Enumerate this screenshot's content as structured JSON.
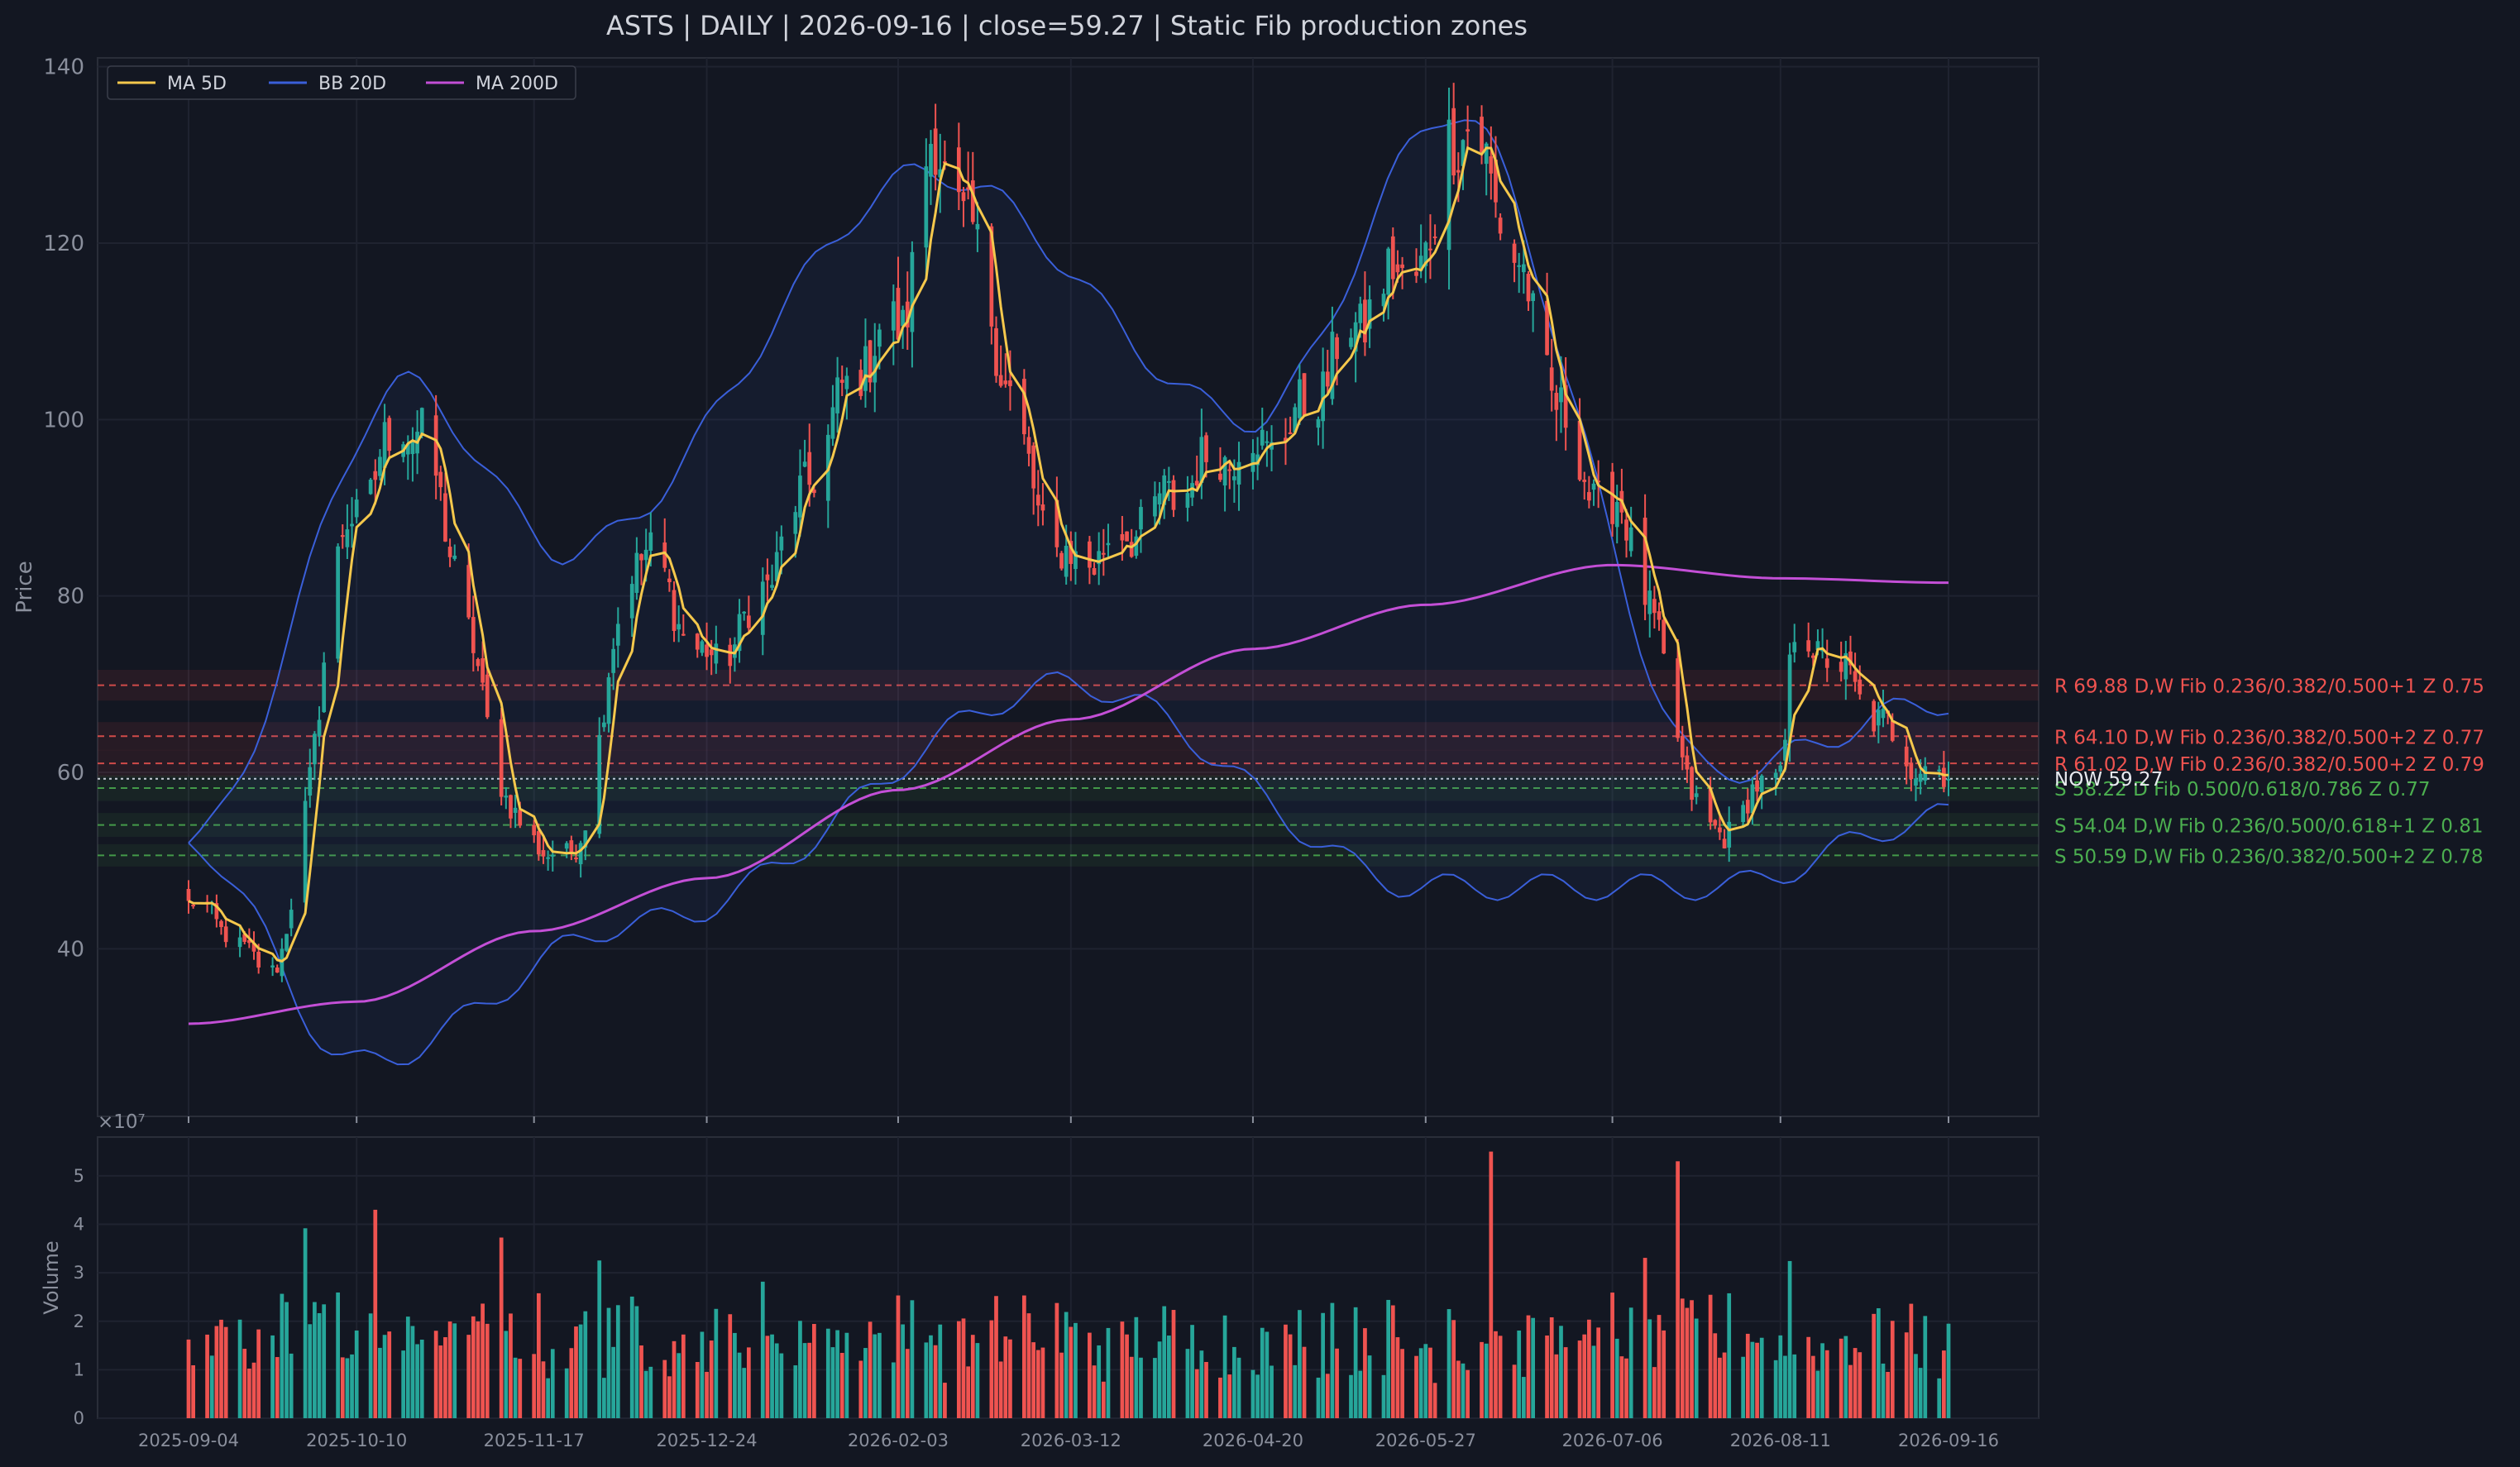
{
  "chart_data": {
    "type": "candlestick",
    "title": "ASTS  |  DAILY  |  2026-09-16  |  close=59.27  |  Static Fib production zones",
    "ticker": "ASTS",
    "timeframe": "DAILY",
    "as_of": "2026-09-16",
    "close": 59.27,
    "price_axis": {
      "label": "Price",
      "ylim": [
        21,
        141
      ],
      "ticks": [
        40,
        60,
        80,
        100,
        120,
        140
      ]
    },
    "volume_axis": {
      "label": "Volume",
      "multiplier_label": "×10⁷",
      "ylim": [
        0,
        5.8
      ],
      "ticks": [
        0,
        1,
        2,
        3,
        4,
        5
      ]
    },
    "x_axis": {
      "tick_labels": [
        "2025-09-04",
        "2025-10-10",
        "2025-11-17",
        "2025-12-24",
        "2026-02-03",
        "2026-03-12",
        "2026-04-20",
        "2026-05-27",
        "2026-07-06",
        "2026-08-11",
        "2026-09-16"
      ]
    },
    "legend": {
      "placement": "top-left",
      "entries": [
        {
          "name": "MA 5D",
          "color": "#f5c84c"
        },
        {
          "name": "BB 20D",
          "color": "#3a5fd9"
        },
        {
          "name": "MA 200D",
          "color": "#c34fd6"
        }
      ]
    },
    "colors": {
      "up": "#26a69a",
      "down": "#ef5350",
      "resistance": "#ef5350",
      "support": "#4caf50",
      "background": "#131722"
    },
    "grid": true,
    "anchors": {
      "dates": [
        "2025-09-04",
        "2025-10-10",
        "2025-11-17",
        "2025-12-24",
        "2026-02-03",
        "2026-03-12",
        "2026-04-20",
        "2026-05-27",
        "2026-07-06",
        "2026-08-11",
        "2026-09-16"
      ],
      "close": [
        45,
        90,
        52,
        73,
        110,
        84,
        97,
        118,
        90,
        60,
        59.27
      ]
    },
    "extrema": [
      {
        "date": "2025-09-22",
        "price": 38
      },
      {
        "date": "2025-10-20",
        "price": 100
      },
      {
        "date": "2025-11-24",
        "price": 50
      },
      {
        "date": "2025-12-10",
        "price": 85
      },
      {
        "date": "2026-02-10",
        "price": 130
      },
      {
        "date": "2026-06-02",
        "price": 133
      },
      {
        "date": "2026-07-28",
        "price": 53
      },
      {
        "date": "2026-08-14",
        "price": 75
      }
    ],
    "series": [
      {
        "name": "MA 5D",
        "approx_points": [
          {
            "date": "2025-09-04",
            "value": 47
          },
          {
            "date": "2025-09-22",
            "value": 38.5
          },
          {
            "date": "2025-10-10",
            "value": 75
          },
          {
            "date": "2025-10-20",
            "value": 90
          },
          {
            "date": "2025-11-05",
            "value": 72
          },
          {
            "date": "2025-11-24",
            "value": 53
          },
          {
            "date": "2025-12-10",
            "value": 77
          },
          {
            "date": "2025-12-24",
            "value": 75
          },
          {
            "date": "2026-01-15",
            "value": 90
          },
          {
            "date": "2026-02-10",
            "value": 118
          },
          {
            "date": "2026-03-01",
            "value": 84
          },
          {
            "date": "2026-03-25",
            "value": 91
          },
          {
            "date": "2026-04-20",
            "value": 94
          },
          {
            "date": "2026-05-15",
            "value": 68
          },
          {
            "date": "2026-06-02",
            "value": 120
          },
          {
            "date": "2026-06-20",
            "value": 85
          },
          {
            "date": "2026-07-06",
            "value": 86
          },
          {
            "date": "2026-07-28",
            "value": 56
          },
          {
            "date": "2026-08-14",
            "value": 72
          },
          {
            "date": "2026-09-16",
            "value": 59.27
          }
        ]
      },
      {
        "name": "MA 200D",
        "approx_points": [
          {
            "date": "2025-09-04",
            "value": 31.5
          },
          {
            "date": "2025-10-10",
            "value": 34
          },
          {
            "date": "2025-11-17",
            "value": 42
          },
          {
            "date": "2025-12-24",
            "value": 48
          },
          {
            "date": "2026-02-03",
            "value": 58
          },
          {
            "date": "2026-03-12",
            "value": 66
          },
          {
            "date": "2026-04-20",
            "value": 74
          },
          {
            "date": "2026-05-27",
            "value": 79
          },
          {
            "date": "2026-07-06",
            "value": 83.5
          },
          {
            "date": "2026-08-11",
            "value": 82
          },
          {
            "date": "2026-09-16",
            "value": 81.5
          }
        ]
      },
      {
        "name": "BB 20D",
        "approx_upper": [
          {
            "date": "2025-09-04",
            "value": 52
          },
          {
            "date": "2025-10-20",
            "value": 104
          },
          {
            "date": "2025-11-24",
            "value": 85
          },
          {
            "date": "2026-02-10",
            "value": 128
          },
          {
            "date": "2026-04-20",
            "value": 100
          },
          {
            "date": "2026-06-02",
            "value": 135
          },
          {
            "date": "2026-07-28",
            "value": 60
          },
          {
            "date": "2026-09-16",
            "value": 68
          }
        ],
        "approx_lower": [
          {
            "date": "2025-09-04",
            "value": 52
          },
          {
            "date": "2025-10-10",
            "value": 27
          },
          {
            "date": "2025-12-10",
            "value": 43
          },
          {
            "date": "2026-03-12",
            "value": 70
          },
          {
            "date": "2026-05-27",
            "value": 47
          },
          {
            "date": "2026-07-28",
            "value": 47
          },
          {
            "date": "2026-09-16",
            "value": 55
          }
        ]
      }
    ],
    "levels": [
      {
        "kind": "R",
        "price": 69.88,
        "tf": "D,W",
        "label": "R 69.88  D,W  Fib 0.236/0.382/0.500+1  Z 0.75"
      },
      {
        "kind": "R",
        "price": 64.1,
        "tf": "D,W",
        "label": "R 64.10  D,W  Fib 0.236/0.382/0.500+2  Z 0.77"
      },
      {
        "kind": "R",
        "price": 61.02,
        "tf": "D,W",
        "label": "R 61.02  D,W  Fib 0.236/0.382/0.500+2  Z 0.79"
      },
      {
        "kind": "S",
        "price": 58.22,
        "tf": "D",
        "label": "S 58.22  D  Fib 0.500/0.618/0.786  Z 0.77"
      },
      {
        "kind": "S",
        "price": 54.04,
        "tf": "D,W",
        "label": "S 54.04  D,W  Fib 0.236/0.500/0.618+1  Z 0.81"
      },
      {
        "kind": "S",
        "price": 50.59,
        "tf": "D,W",
        "label": "S 50.59  D,W  Fib 0.236/0.382/0.500+2  Z 0.78"
      }
    ],
    "now_label": "NOW 59.27",
    "volume_highlights": [
      {
        "date": "2025-10-14",
        "value": 4.3
      },
      {
        "date": "2026-05-30",
        "value": 5.5
      },
      {
        "date": "2026-06-10",
        "value": 5.5
      },
      {
        "date": "2026-07-20",
        "value": 5.3
      }
    ]
  }
}
